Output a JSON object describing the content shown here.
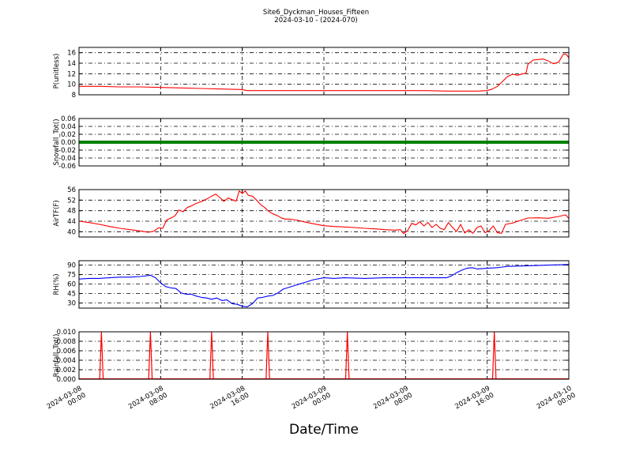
{
  "chart_data": {
    "title": "Site6_Dyckman_Houses_Fifteen",
    "subtitle": "2024-03-10 - (2024-070)",
    "xlabel": "Date/Time",
    "x_ticks": [
      "2024-03-08\n00:00",
      "2024-03-08\n08:00",
      "2024-03-08\n16:00",
      "2024-03-09\n00:00",
      "2024-03-09\n08:00",
      "2024-03-09\n16:00",
      "2024-03-10\n00:00"
    ],
    "x_range_hours": [
      0,
      48
    ],
    "grid": true,
    "panels": [
      {
        "type": "line",
        "ylabel": "P(unitless)",
        "ylim": [
          8,
          17
        ],
        "yticks": [
          "8",
          "10",
          "12",
          "14",
          "16"
        ],
        "ytick_values": [
          8,
          10,
          12,
          14,
          16
        ],
        "color": "#ff0000",
        "x": [
          0,
          1,
          2,
          4,
          6,
          8,
          10,
          12,
          14,
          15.9,
          16.5,
          18,
          20,
          22,
          24,
          26,
          28,
          30,
          32,
          34,
          36,
          38,
          39,
          40,
          40.5,
          41,
          41.5,
          42,
          42.5,
          43,
          43.5,
          43.8,
          44,
          44.5,
          45,
          45.5,
          46,
          46.5,
          47,
          47.5,
          47.8,
          48
        ],
        "values": [
          9.6,
          9.6,
          9.6,
          9.5,
          9.5,
          9.4,
          9.3,
          9.2,
          9.1,
          9.0,
          8.8,
          8.8,
          8.8,
          8.8,
          8.8,
          8.8,
          8.8,
          8.8,
          8.8,
          8.8,
          8.7,
          8.7,
          8.7,
          8.8,
          9.1,
          9.6,
          10.5,
          11.5,
          11.9,
          11.7,
          12.0,
          12.1,
          13.8,
          14.6,
          14.7,
          14.8,
          14.4,
          13.9,
          14.2,
          15.8,
          15.6,
          15.0
        ]
      },
      {
        "type": "line",
        "ylabel": "Snowfall_Tot()",
        "ylim": [
          -0.06,
          0.06
        ],
        "yticks": [
          "-0.06",
          "-0.04",
          "-0.02",
          "0.00",
          "0.02",
          "0.04",
          "0.06"
        ],
        "ytick_values": [
          -0.06,
          -0.04,
          -0.02,
          0,
          0.02,
          0.04,
          0.06
        ],
        "color": "#008000",
        "thick": true,
        "x": [
          0,
          48
        ],
        "values": [
          0,
          0
        ]
      },
      {
        "type": "line",
        "ylabel": "AirTF(F)",
        "ylim": [
          38,
          56
        ],
        "yticks": [
          "40",
          "44",
          "48",
          "52",
          "56"
        ],
        "ytick_values": [
          40,
          44,
          48,
          52,
          56
        ],
        "color": "#ff0000",
        "x": [
          0,
          1,
          2,
          3,
          4,
          5,
          6,
          6.8,
          7.3,
          7.8,
          8.2,
          8.6,
          9.0,
          9.4,
          9.8,
          10.2,
          10.6,
          11.0,
          11.4,
          11.8,
          12.2,
          12.6,
          13.0,
          13.4,
          13.8,
          14.2,
          14.6,
          15.0,
          15.4,
          15.7,
          16.0,
          16.3,
          16.6,
          17.0,
          17.4,
          17.8,
          18.2,
          18.6,
          19.0,
          19.4,
          19.8,
          20.2,
          20.6,
          21.0,
          21.5,
          22,
          23,
          24,
          25,
          26,
          27,
          28,
          29,
          30,
          31,
          31.5,
          31.8,
          32.2,
          32.6,
          33.0,
          33.4,
          33.8,
          34.2,
          34.6,
          35.0,
          35.4,
          35.8,
          36.2,
          36.6,
          37.0,
          37.4,
          37.8,
          38.2,
          38.6,
          39.0,
          39.4,
          39.8,
          40.2,
          40.6,
          41.0,
          41.4,
          41.8,
          42.5,
          43,
          44,
          45,
          46,
          47,
          47.7,
          48
        ],
        "values": [
          44,
          43.5,
          42.8,
          42,
          41.3,
          40.8,
          40.3,
          39.8,
          40.2,
          41.5,
          41.3,
          44.5,
          45.2,
          46,
          48.3,
          47.6,
          49.2,
          49.8,
          50.6,
          51.2,
          51.8,
          52.6,
          53.5,
          54.3,
          53,
          51.5,
          52.8,
          52.2,
          51.6,
          55.5,
          54.5,
          55.5,
          53.8,
          53.5,
          52,
          50.3,
          49.2,
          47.7,
          46.8,
          46.2,
          45.3,
          44.8,
          44.8,
          44.6,
          44.3,
          43.8,
          43,
          42.3,
          42,
          41.8,
          41.6,
          41.3,
          41.1,
          40.8,
          40.6,
          40.8,
          39.3,
          40.4,
          43.2,
          42.6,
          43.8,
          42.2,
          43.5,
          41.6,
          42.8,
          41.3,
          40.8,
          43.5,
          41.6,
          40.1,
          42.8,
          39.5,
          40.8,
          39.4,
          41.6,
          42.2,
          39.6,
          40.5,
          42.2,
          39.6,
          39.4,
          42.8,
          43.3,
          44,
          45.2,
          45.3,
          45.1,
          45.8,
          46.4,
          45
        ]
      },
      {
        "type": "line",
        "ylabel": "RH(%)",
        "ylim": [
          22,
          97
        ],
        "yticks": [
          "30",
          "45",
          "60",
          "75",
          "90"
        ],
        "ytick_values": [
          30,
          45,
          60,
          75,
          90
        ],
        "color": "#0000ff",
        "x": [
          0,
          1,
          2,
          3,
          4,
          5,
          6,
          7,
          7.5,
          8,
          8.5,
          9,
          9.5,
          10,
          10.5,
          11,
          11.5,
          12,
          12.5,
          13,
          13.5,
          14,
          14.5,
          15,
          15.5,
          16,
          16.5,
          17,
          17.5,
          18,
          18.5,
          19,
          19.5,
          20,
          21,
          22,
          23,
          24,
          25,
          26,
          28,
          30,
          32,
          34,
          36,
          36.5,
          37,
          37.5,
          38,
          38.5,
          39,
          40,
          41,
          42,
          44,
          46,
          48
        ],
        "values": [
          68,
          69,
          69,
          70,
          71,
          71,
          72,
          74,
          70,
          62,
          56,
          54,
          53,
          46,
          44,
          44,
          41,
          39,
          38,
          36,
          38,
          34,
          35,
          29,
          28,
          25,
          24,
          29,
          38,
          39,
          41,
          42,
          46,
          52,
          57,
          62,
          67,
          70,
          69,
          70,
          69,
          70,
          70,
          70,
          70,
          73,
          78,
          82,
          85,
          86,
          84,
          85,
          86,
          88,
          89,
          90,
          91
        ]
      },
      {
        "type": "spike",
        "ylabel": "Rainfall_Tot()",
        "ylim": [
          0,
          0.01
        ],
        "yticks": [
          "0.000",
          "0.002",
          "0.004",
          "0.006",
          "0.008",
          "0.010"
        ],
        "ytick_values": [
          0,
          0.002,
          0.004,
          0.006,
          0.008,
          0.01
        ],
        "color": "#ff0000",
        "spike_x": [
          2.2,
          7.0,
          13.0,
          18.5,
          26.3,
          40.7
        ],
        "spike_values": [
          0.01,
          0.01,
          0.01,
          0.01,
          0.01,
          0.01
        ]
      }
    ]
  }
}
